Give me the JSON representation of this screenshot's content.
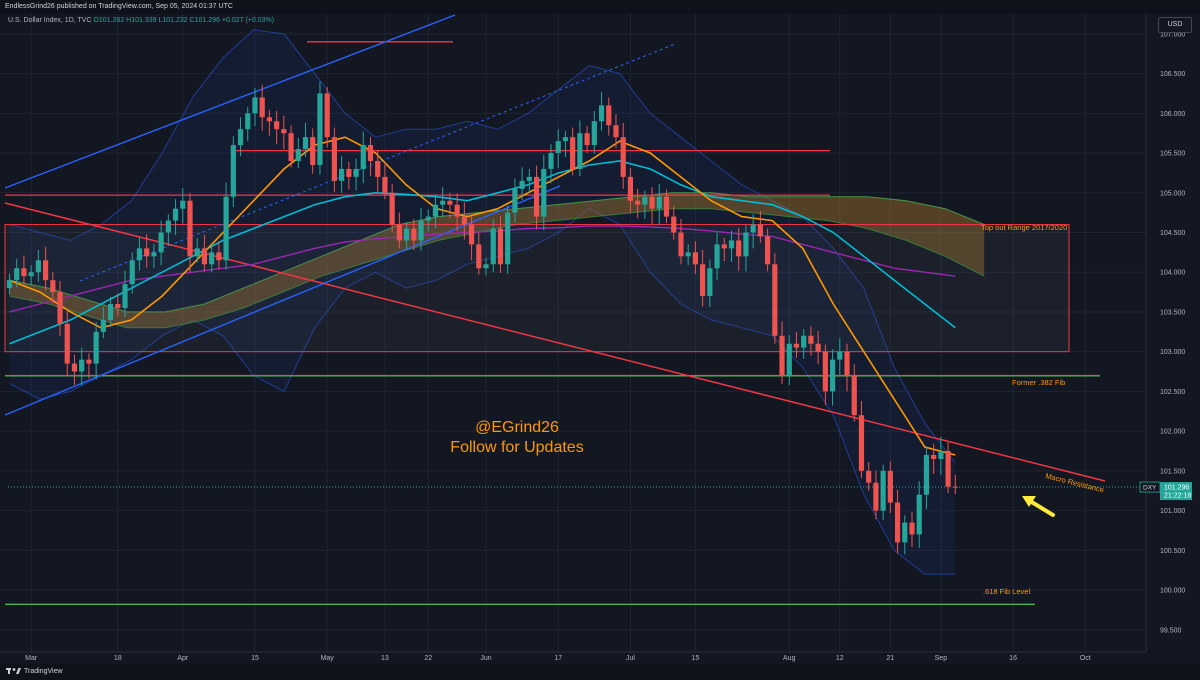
{
  "topbar": {
    "published": "EndlessGrind26 published on TradingView.com, Sep 05, 2024 01:37 UTC"
  },
  "legend": {
    "symbol": "U.S. Dollar Index, 1D, TVC",
    "ohlc": "O101.282  H101.339  L101.232  C101.296  +0.027 (+0.03%)"
  },
  "currency": "USD",
  "brand": "TradingView",
  "price_badge": {
    "symbol": "DXY",
    "price": "101.296",
    "countdown": "21:22:18"
  },
  "chart_data": {
    "type": "candlestick",
    "interval": "1D",
    "symbol": "DXY",
    "y_ticks": [
      99.5,
      100.0,
      100.5,
      101.0,
      101.5,
      102.0,
      102.5,
      103.0,
      103.5,
      104.0,
      104.5,
      105.0,
      105.5,
      106.0,
      106.5,
      107.0
    ],
    "y_range": [
      99.22,
      107.25
    ],
    "x_ticks": [
      {
        "i": 3,
        "label": "Mar"
      },
      {
        "i": 15,
        "label": "18"
      },
      {
        "i": 24,
        "label": "Apr"
      },
      {
        "i": 34,
        "label": "15"
      },
      {
        "i": 44,
        "label": "May"
      },
      {
        "i": 52,
        "label": "13"
      },
      {
        "i": 58,
        "label": "22"
      },
      {
        "i": 66,
        "label": "Jun"
      },
      {
        "i": 76,
        "label": "17"
      },
      {
        "i": 86,
        "label": "Jul"
      },
      {
        "i": 95,
        "label": "15"
      },
      {
        "i": 108,
        "label": "Aug"
      },
      {
        "i": 115,
        "label": "12"
      },
      {
        "i": 122,
        "label": "21"
      },
      {
        "i": 129,
        "label": "Sep"
      },
      {
        "i": 139,
        "label": "16"
      },
      {
        "i": 149,
        "label": "Oct"
      }
    ],
    "close": [
      103.9,
      104.05,
      103.95,
      104.0,
      104.15,
      103.9,
      103.75,
      103.35,
      102.85,
      102.75,
      102.9,
      102.85,
      103.25,
      103.4,
      103.6,
      103.55,
      103.85,
      104.15,
      104.3,
      104.2,
      104.25,
      104.5,
      104.65,
      104.8,
      104.9,
      104.2,
      104.3,
      104.1,
      104.25,
      104.15,
      104.95,
      105.6,
      105.8,
      106.0,
      106.2,
      105.95,
      105.9,
      105.8,
      105.75,
      105.4,
      105.55,
      105.7,
      105.35,
      106.25,
      105.7,
      105.15,
      105.3,
      105.2,
      105.3,
      105.6,
      105.4,
      105.2,
      105.0,
      104.6,
      104.4,
      104.55,
      104.4,
      104.65,
      104.7,
      104.85,
      104.9,
      104.85,
      104.7,
      104.6,
      104.35,
      104.05,
      104.1,
      104.55,
      104.1,
      104.75,
      105.05,
      105.15,
      105.2,
      104.7,
      105.3,
      105.5,
      105.65,
      105.7,
      105.3,
      105.75,
      105.6,
      105.9,
      106.1,
      105.85,
      105.7,
      105.2,
      104.9,
      104.85,
      104.95,
      104.8,
      104.95,
      104.7,
      104.5,
      104.2,
      104.25,
      104.1,
      103.7,
      104.05,
      104.35,
      104.3,
      104.4,
      104.2,
      104.5,
      104.6,
      104.45,
      104.1,
      103.2,
      102.7,
      103.1,
      103.05,
      103.2,
      103.1,
      103.0,
      102.5,
      102.9,
      103.0,
      102.7,
      102.2,
      101.5,
      101.35,
      101.0,
      101.5,
      101.1,
      100.6,
      100.85,
      100.7,
      101.2,
      101.7,
      101.65,
      101.75,
      101.3,
      101.296
    ],
    "open_first": 103.8,
    "indicators": {
      "ema_orange": [
        103.9,
        103.75,
        103.5,
        103.3,
        103.4,
        103.7,
        104.1,
        104.5,
        104.9,
        105.3,
        105.6,
        105.7,
        105.5,
        105.1,
        104.8,
        104.7,
        104.8,
        105.0,
        105.2,
        105.4,
        105.65,
        105.5,
        105.2,
        104.9,
        104.7,
        104.65,
        104.3,
        103.6,
        103.0,
        102.4,
        101.8,
        101.7
      ],
      "ema_cyan": [
        103.1,
        103.25,
        103.4,
        103.6,
        103.8,
        104.0,
        104.2,
        104.4,
        104.55,
        104.7,
        104.85,
        104.95,
        105.0,
        104.98,
        104.95,
        104.9,
        105.0,
        105.1,
        105.25,
        105.35,
        105.4,
        105.3,
        105.1,
        104.95,
        104.9,
        104.85,
        104.7,
        104.5,
        104.2,
        103.9,
        103.6,
        103.3
      ],
      "sma_purple": [
        103.5,
        103.6,
        103.7,
        103.8,
        103.9,
        103.95,
        104.0,
        104.05,
        104.1,
        104.2,
        104.3,
        104.38,
        104.42,
        104.45,
        104.48,
        104.5,
        104.52,
        104.55,
        104.56,
        104.58,
        104.58,
        104.57,
        104.55,
        104.52,
        104.48,
        104.45,
        104.35,
        104.25,
        104.15,
        104.05,
        104.0,
        103.95
      ],
      "cloud_top": [
        103.9,
        103.8,
        103.65,
        103.5,
        103.5,
        103.6,
        103.8,
        104.0,
        104.2,
        104.4,
        104.6,
        104.7,
        104.75,
        104.8,
        104.85,
        104.9,
        104.95,
        105.0,
        105.0,
        104.95,
        104.95,
        104.95,
        104.95,
        104.9,
        104.8,
        104.6
      ],
      "cloud_bottom": [
        103.7,
        103.6,
        103.45,
        103.3,
        103.3,
        103.4,
        103.55,
        103.75,
        103.95,
        104.1,
        104.25,
        104.4,
        104.5,
        104.6,
        104.65,
        104.7,
        104.75,
        104.8,
        104.8,
        104.75,
        104.7,
        104.65,
        104.55,
        104.4,
        104.2,
        103.95
      ],
      "bb_upper": [
        104.6,
        104.5,
        104.4,
        104.6,
        104.9,
        105.5,
        106.2,
        106.7,
        107.05,
        107.0,
        106.5,
        106.0,
        105.7,
        105.8,
        105.8,
        105.9,
        105.8,
        106.0,
        106.3,
        106.6,
        106.5,
        106.0,
        105.7,
        105.4,
        105.1,
        104.9,
        104.7,
        104.3,
        103.8,
        102.8,
        102.1,
        101.6
      ],
      "bb_lower": [
        102.6,
        102.4,
        102.5,
        102.7,
        102.9,
        103.2,
        103.4,
        103.2,
        102.7,
        102.5,
        103.3,
        103.8,
        104.0,
        103.8,
        103.9,
        104.1,
        104.2,
        104.3,
        104.5,
        104.8,
        104.6,
        104.0,
        103.6,
        103.4,
        103.3,
        103.2,
        102.8,
        102.2,
        101.2,
        100.5,
        100.2,
        100.2
      ]
    },
    "levels": [
      {
        "label": "",
        "value": 106.9,
        "color": "#f23645"
      },
      {
        "label": "",
        "value": 105.53,
        "color": "#f23645"
      },
      {
        "label": "",
        "value": 104.97,
        "color": "#f23645"
      },
      {
        "label": "",
        "value": 104.6,
        "color": "#f23645"
      },
      {
        "label": "Top out Range 2017/2020",
        "value": 104.6,
        "color": "#f23645"
      },
      {
        "label": "",
        "value": 103.0,
        "color": "#f23645"
      },
      {
        "label": "Former .382 Fib",
        "value": 102.7,
        "color": "#f23645"
      },
      {
        "label": ".618 Fib Level",
        "value": 99.82,
        "color": "#4caf50"
      }
    ],
    "annotations": {
      "handle": "@EGrind26",
      "cta": "Follow for Updates",
      "macro_resistance": "Macro Resistance",
      "top_out": "Top out Range 2017/2020",
      "former_382": "Former .382 Fib",
      "fib_618": ".618 Fib Level"
    },
    "colors": {
      "up": "#26a69a",
      "down": "#ef5350",
      "ema_orange": "#ff9800",
      "ema_cyan": "#00bcd4",
      "sma_purple": "#9c27b0",
      "channel": "#2962ff",
      "resistance": "#f23645",
      "fib": "#4caf50",
      "annotation": "#ff9800",
      "arrow": "#ffeb3b"
    }
  }
}
